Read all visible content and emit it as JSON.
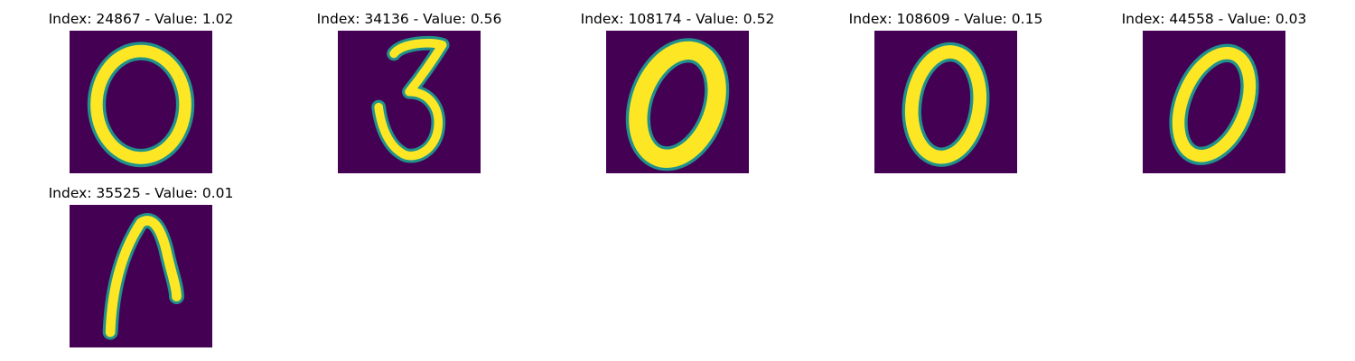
{
  "panels": [
    {
      "title": "Index: 24867 - Value: 1.02",
      "digit_glyph": "zero-round"
    },
    {
      "title": "Index: 34136 - Value: 0.56",
      "digit_glyph": "three"
    },
    {
      "title": "Index: 108174 - Value: 0.52",
      "digit_glyph": "zero-slanted"
    },
    {
      "title": "Index: 108609 - Value: 0.15",
      "digit_glyph": "zero-narrow"
    },
    {
      "title": "Index: 44558 - Value: 0.03",
      "digit_glyph": "zero-slanted"
    },
    {
      "title": "Index: 35525 - Value: 0.01",
      "digit_glyph": "arch-stroke"
    }
  ],
  "colors": {
    "background": "#440154",
    "stroke": "#fde725",
    "stroke_edge": "#21918c"
  }
}
